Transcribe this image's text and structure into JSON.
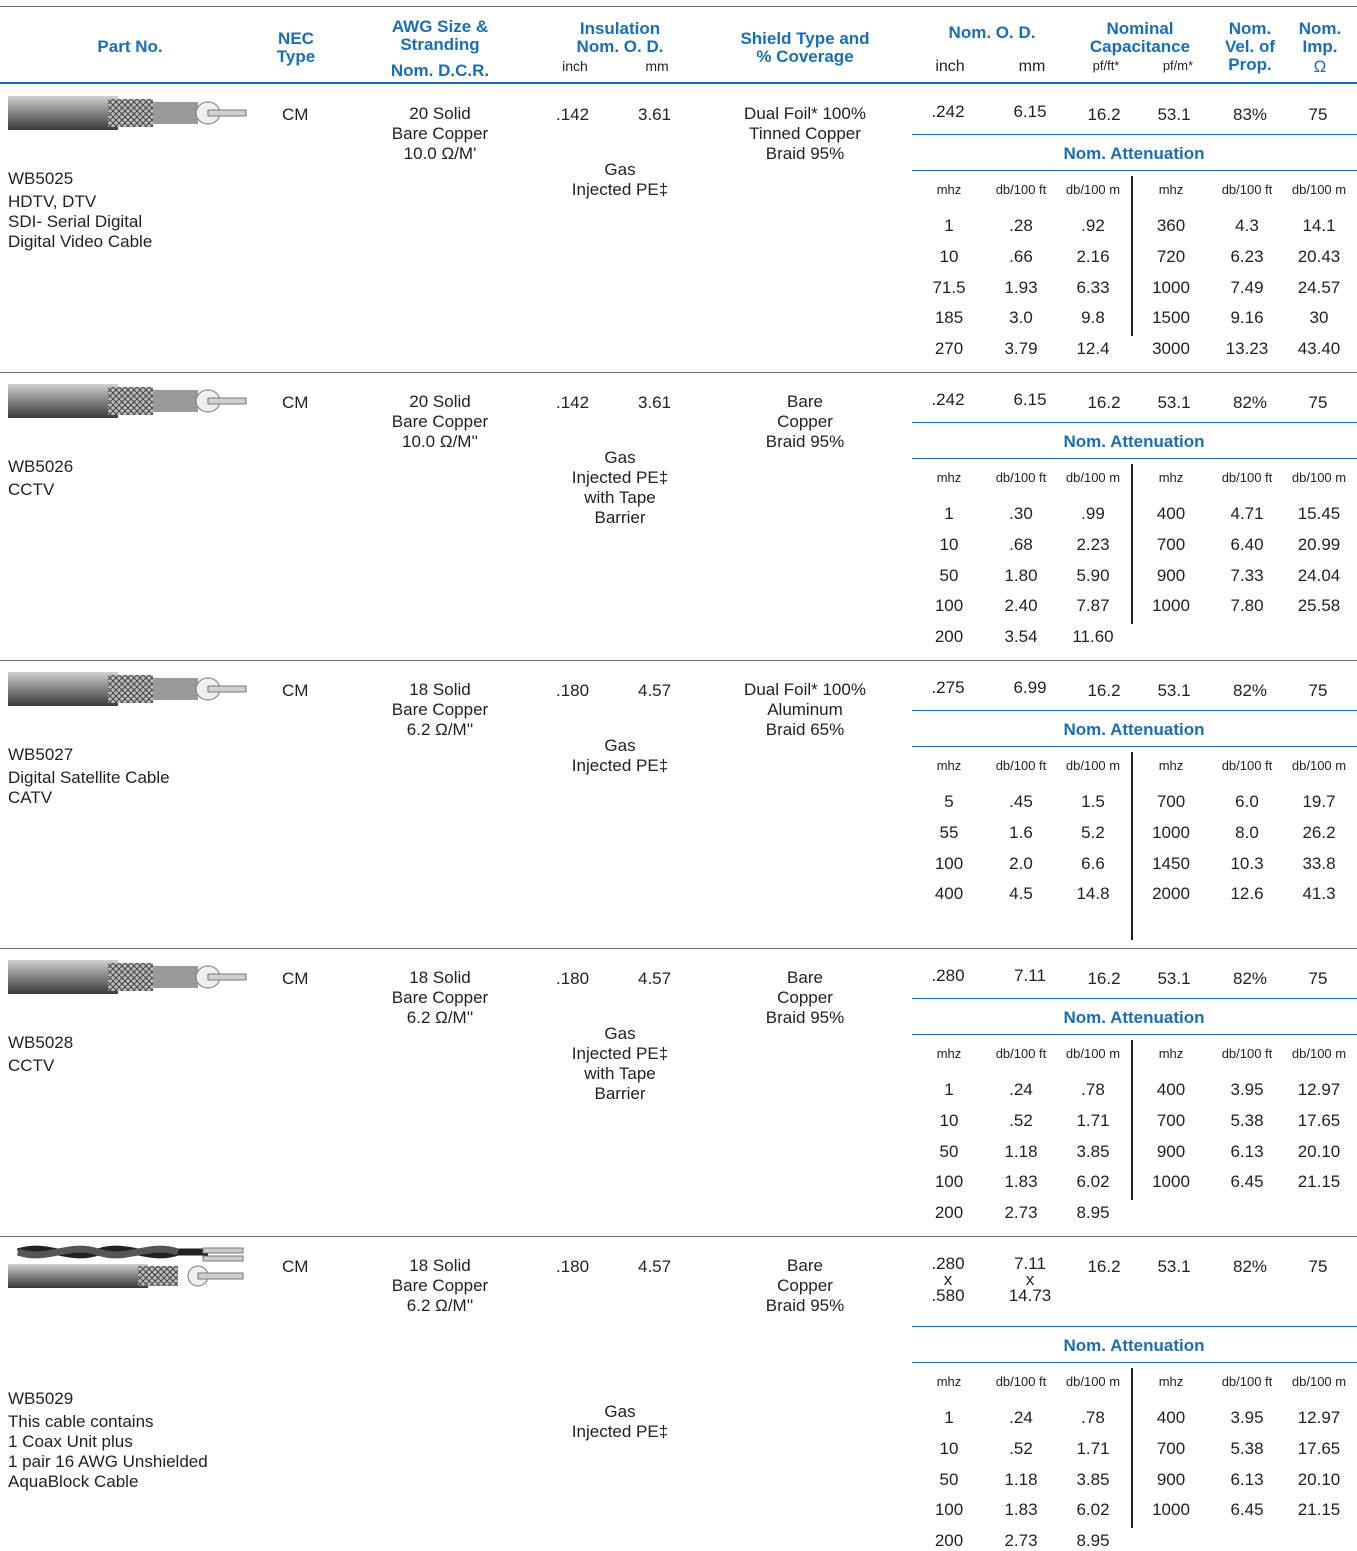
{
  "header": {
    "part_no": "Part No.",
    "nec_type": [
      "NEC",
      "Type"
    ],
    "awg": [
      "AWG Size &",
      "Stranding",
      "Nom. D.C.R."
    ],
    "insulation": [
      "Insulation",
      "Nom. O. D."
    ],
    "insulation_units": [
      "inch",
      "mm"
    ],
    "shield": [
      "Shield Type and",
      "% Coverage"
    ],
    "nom_od": "Nom. O. D.",
    "nom_od_units": [
      "inch",
      "mm"
    ],
    "capacitance": [
      "Nominal",
      "Capacitance"
    ],
    "capacitance_units": [
      "pf/ft*",
      "pf/m*"
    ],
    "vel_prop": [
      "Nom.",
      "Vel. of",
      "Prop."
    ],
    "imp": [
      "Nom.",
      "Imp.",
      "Ω"
    ]
  },
  "attenuation_title": "Nom. Attenuation",
  "attenuation_headers": [
    "mhz",
    "db/100 ft",
    "db/100 m",
    "mhz",
    "db/100 ft",
    "db/100 m"
  ],
  "products": [
    {
      "part": "WB5025",
      "desc": "HDTV, DTV\nSDI- Serial Digital\nDigital Video Cable",
      "nec": "CM",
      "awg": "20 Solid\nBare Copper\n10.0 Ω/M'",
      "ins_inch": ".142",
      "ins_mm": "3.61",
      "ins_type": "Gas\nInjected PE‡",
      "shield": "Dual Foil* 100%\nTinned Copper\nBraid 95%",
      "od_inch": ".242",
      "od_mm": "6.15",
      "cap_ft": "16.2",
      "cap_m": "53.1",
      "vop": "83%",
      "imp": "75",
      "att_left": [
        [
          "1",
          ".28",
          ".92"
        ],
        [
          "10",
          ".66",
          "2.16"
        ],
        [
          "71.5",
          "1.93",
          "6.33"
        ],
        [
          "185",
          "3.0",
          "9.8"
        ],
        [
          "270",
          "3.79",
          "12.4"
        ]
      ],
      "att_right": [
        [
          "360",
          "4.3",
          "14.1"
        ],
        [
          "720",
          "6.23",
          "20.43"
        ],
        [
          "1000",
          "7.49",
          "24.57"
        ],
        [
          "1500",
          "9.16",
          "30"
        ],
        [
          "3000",
          "13.23",
          "43.40"
        ]
      ]
    },
    {
      "part": "WB5026",
      "desc": "CCTV",
      "nec": "CM",
      "awg": "20 Solid\nBare Copper\n10.0 Ω/M''",
      "ins_inch": ".142",
      "ins_mm": "3.61",
      "ins_type": "Gas\nInjected PE‡\nwith Tape\nBarrier",
      "shield": "Bare\nCopper\nBraid 95%",
      "od_inch": ".242",
      "od_mm": "6.15",
      "cap_ft": "16.2",
      "cap_m": "53.1",
      "vop": "82%",
      "imp": "75",
      "att_left": [
        [
          "1",
          ".30",
          ".99"
        ],
        [
          "10",
          ".68",
          "2.23"
        ],
        [
          "50",
          "1.80",
          "5.90"
        ],
        [
          "100",
          "2.40",
          "7.87"
        ],
        [
          "200",
          "3.54",
          "11.60"
        ]
      ],
      "att_right": [
        [
          "400",
          "4.71",
          "15.45"
        ],
        [
          "700",
          "6.40",
          "20.99"
        ],
        [
          "900",
          "7.33",
          "24.04"
        ],
        [
          "1000",
          "7.80",
          "25.58"
        ]
      ]
    },
    {
      "part": "WB5027",
      "desc": "Digital Satellite Cable\nCATV",
      "nec": "CM",
      "awg": "18 Solid\nBare Copper\n6.2 Ω/M''",
      "ins_inch": ".180",
      "ins_mm": "4.57",
      "ins_type": "Gas\nInjected PE‡",
      "shield": "Dual Foil* 100%\nAluminum\nBraid 65%",
      "od_inch": ".275",
      "od_mm": "6.99",
      "cap_ft": "16.2",
      "cap_m": "53.1",
      "vop": "82%",
      "imp": "75",
      "att_left": [
        [
          "5",
          ".45",
          "1.5"
        ],
        [
          "55",
          "1.6",
          "5.2"
        ],
        [
          "100",
          "2.0",
          "6.6"
        ],
        [
          "400",
          "4.5",
          "14.8"
        ]
      ],
      "att_right": [
        [
          "700",
          "6.0",
          "19.7"
        ],
        [
          "1000",
          "8.0",
          "26.2"
        ],
        [
          "1450",
          "10.3",
          "33.8"
        ],
        [
          "2000",
          "12.6",
          "41.3"
        ]
      ]
    },
    {
      "part": "WB5028",
      "desc": "CCTV",
      "nec": "CM",
      "awg": "18 Solid\nBare Copper\n6.2 Ω/M''",
      "ins_inch": ".180",
      "ins_mm": "4.57",
      "ins_type": "Gas\nInjected PE‡\nwith Tape\nBarrier",
      "shield": "Bare\nCopper\nBraid 95%",
      "od_inch": ".280",
      "od_mm": "7.11",
      "cap_ft": "16.2",
      "cap_m": "53.1",
      "vop": "82%",
      "imp": "75",
      "att_left": [
        [
          "1",
          ".24",
          ".78"
        ],
        [
          "10",
          ".52",
          "1.71"
        ],
        [
          "50",
          "1.18",
          "3.85"
        ],
        [
          "100",
          "1.83",
          "6.02"
        ],
        [
          "200",
          "2.73",
          "8.95"
        ]
      ],
      "att_right": [
        [
          "400",
          "3.95",
          "12.97"
        ],
        [
          "700",
          "5.38",
          "17.65"
        ],
        [
          "900",
          "6.13",
          "20.10"
        ],
        [
          "1000",
          "6.45",
          "21.15"
        ]
      ]
    },
    {
      "part": "WB5029",
      "desc": "This cable contains\n1 Coax Unit plus\n1 pair 16 AWG Unshielded\nAquaBlock Cable",
      "nec": "CM",
      "awg": "18 Solid\nBare Copper\n6.2 Ω/M''",
      "ins_inch": ".180",
      "ins_mm": "4.57",
      "ins_type": "Gas\nInjected PE‡",
      "shield": "Bare\nCopper\nBraid 95%",
      "od_inch": ".280\nx\n.580",
      "od_mm": "7.11\nx\n14.73",
      "cap_ft": "16.2",
      "cap_m": "53.1",
      "vop": "82%",
      "imp": "75",
      "att_left": [
        [
          "1",
          ".24",
          ".78"
        ],
        [
          "10",
          ".52",
          "1.71"
        ],
        [
          "50",
          "1.18",
          "3.85"
        ],
        [
          "100",
          "1.83",
          "6.02"
        ],
        [
          "200",
          "2.73",
          "8.95"
        ]
      ],
      "att_right": [
        [
          "400",
          "3.95",
          "12.97"
        ],
        [
          "700",
          "5.38",
          "17.65"
        ],
        [
          "900",
          "6.13",
          "20.10"
        ],
        [
          "1000",
          "6.45",
          "21.15"
        ]
      ]
    }
  ],
  "colors": {
    "blue": "#1a6fb3",
    "text": "#231f20",
    "rule": "#6b6b6b"
  }
}
